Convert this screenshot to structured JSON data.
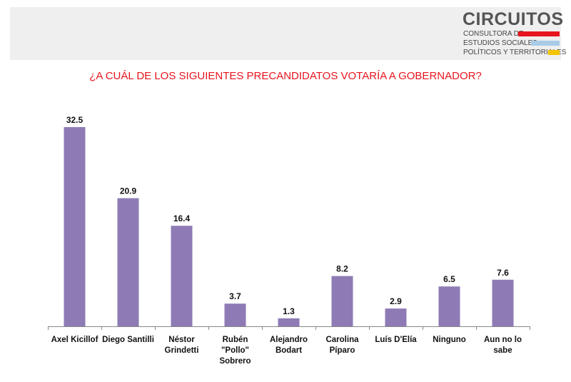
{
  "logo": {
    "name": "CIRCUITOS",
    "lines": [
      "CONSULTORA DE",
      "ESTUDIOS SOCIALES,",
      "POLÍTICOS Y TERRITORIALES"
    ],
    "bar_colors": [
      "#e8141e",
      "#a8cbe8",
      "#f3c300"
    ]
  },
  "chart_data": {
    "type": "bar",
    "title": "¿A CUÁL DE LOS SIGUIENTES PRECANDIDATOS VOTARÍA A GOBERNADOR?",
    "categories": [
      [
        "Axel Kicillof"
      ],
      [
        "Diego Santilli"
      ],
      [
        "Néstor",
        "Grindetti"
      ],
      [
        "Rubén",
        "\"Pollo\"",
        "Sobrero"
      ],
      [
        "Alejandro",
        "Bodart"
      ],
      [
        "Carolina",
        "Píparo"
      ],
      [
        "Luís D'Elía"
      ],
      [
        "Ninguno"
      ],
      [
        "Aun no lo",
        "sabe"
      ]
    ],
    "values": [
      32.5,
      20.9,
      16.4,
      3.7,
      1.3,
      8.2,
      2.9,
      6.5,
      7.6
    ],
    "bar_color": "#8e7bb5",
    "xlabel": "",
    "ylabel": "",
    "grid": false
  }
}
